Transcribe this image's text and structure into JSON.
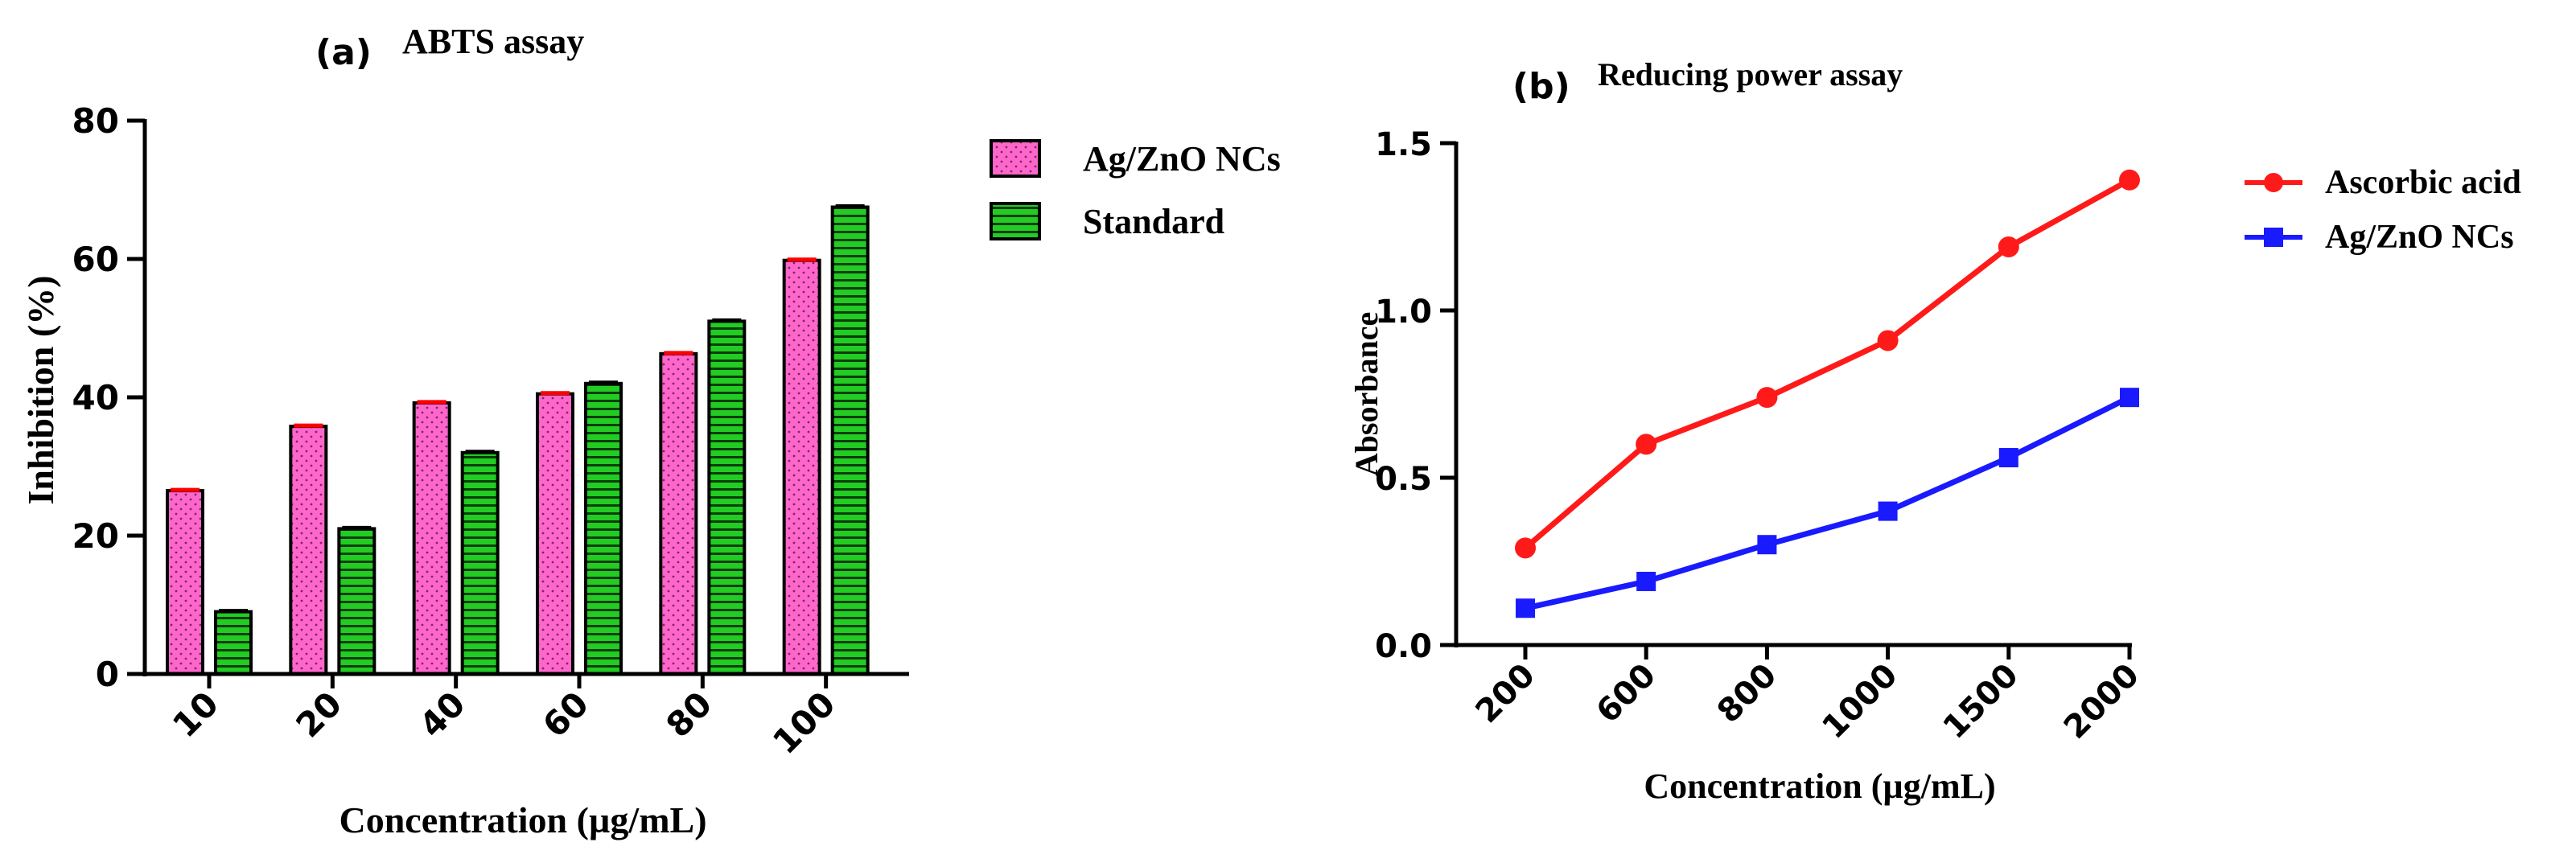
{
  "chart_data": [
    {
      "panel": "(a)",
      "type": "bar",
      "title": "ABTS assay",
      "xlabel": "Concentration (µg/mL)",
      "ylabel": "Inhibition (%)",
      "ylim": [
        0,
        80
      ],
      "yticks": [
        0,
        20,
        40,
        60,
        80
      ],
      "categories": [
        "10",
        "20",
        "40",
        "60",
        "80",
        "100"
      ],
      "series": [
        {
          "name": "Ag/ZnO NCs",
          "values": [
            26.5,
            35.8,
            39.2,
            40.5,
            46.3,
            59.8
          ],
          "color": "#ff66cc",
          "pattern": "dots",
          "errorbar_color": "#ff0000"
        },
        {
          "name": "Standard",
          "values": [
            9,
            21,
            32,
            42,
            51,
            67.5
          ],
          "color": "#22cc22",
          "pattern": "stripes",
          "errorbar_color": "#000000"
        }
      ],
      "legend": "top-right"
    },
    {
      "panel": "(b)",
      "type": "line",
      "title": "Reducing power assay",
      "xlabel": "Concentration (µg/mL)",
      "ylabel": "Absorbance",
      "ylim": [
        0,
        1.5
      ],
      "yticks": [
        "0.0",
        "0.5",
        "1.0",
        "1.5"
      ],
      "categories": [
        "200",
        "600",
        "800",
        "1000",
        "1500",
        "2000"
      ],
      "series": [
        {
          "name": "Ascorbic acid",
          "values": [
            0.29,
            0.6,
            0.74,
            0.91,
            1.19,
            1.39
          ],
          "color": "#ff1a1a",
          "marker": "circle"
        },
        {
          "name": "Ag/ZnO NCs",
          "values": [
            0.11,
            0.19,
            0.3,
            0.4,
            0.56,
            0.74
          ],
          "color": "#1a1aff",
          "marker": "square"
        }
      ],
      "legend": "top-right"
    }
  ]
}
